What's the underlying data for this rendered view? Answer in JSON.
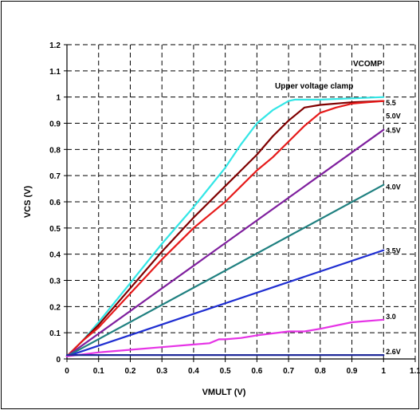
{
  "chart_data": {
    "type": "line",
    "title": "",
    "xlabel": "VMULT (V)",
    "ylabel": "VCS (V)",
    "xlim": [
      0,
      1.1
    ],
    "ylim": [
      0,
      1.2
    ],
    "x_ticks": [
      "0",
      "0.1",
      "0.2",
      "0.3",
      "0.4",
      "0.5",
      "0.6",
      "0.7",
      "0.8",
      "0.9",
      "1",
      "1.1"
    ],
    "y_ticks": [
      "0",
      "0.1",
      "0.2",
      "0.3",
      "0.4",
      "0.5",
      "0.6",
      "0.7",
      "0.8",
      "0.9",
      "1",
      "1.1",
      "1.2"
    ],
    "grid": true,
    "annotations": [
      "VCOMP",
      "Upper voltage clamp"
    ],
    "series": [
      {
        "name": "5.5",
        "color": "#33E6E6",
        "label_at": [
          1.0,
          0.98
        ],
        "x": [
          0,
          0.05,
          0.1,
          0.2,
          0.3,
          0.4,
          0.5,
          0.55,
          0.6,
          0.65,
          0.7,
          0.72,
          0.8,
          0.9,
          1.0
        ],
        "y": [
          0.01,
          0.07,
          0.14,
          0.29,
          0.44,
          0.58,
          0.73,
          0.82,
          0.9,
          0.95,
          0.985,
          0.99,
          0.99,
          0.995,
          1.0
        ]
      },
      {
        "name": "5.0V",
        "color": "#800000",
        "label_at": [
          1.0,
          0.93
        ],
        "x": [
          0,
          0.05,
          0.1,
          0.2,
          0.3,
          0.4,
          0.5,
          0.55,
          0.6,
          0.65,
          0.7,
          0.75,
          0.8,
          0.9,
          1.0
        ],
        "y": [
          0.01,
          0.07,
          0.13,
          0.27,
          0.41,
          0.54,
          0.66,
          0.72,
          0.78,
          0.85,
          0.91,
          0.96,
          0.97,
          0.98,
          0.985
        ]
      },
      {
        "name": "",
        "color": "#E61A1A",
        "x": [
          0,
          0.05,
          0.1,
          0.2,
          0.3,
          0.4,
          0.5,
          0.55,
          0.6,
          0.65,
          0.7,
          0.75,
          0.8,
          0.85,
          0.9,
          0.95,
          1.0
        ],
        "y": [
          0.01,
          0.07,
          0.12,
          0.25,
          0.38,
          0.5,
          0.6,
          0.66,
          0.72,
          0.77,
          0.83,
          0.89,
          0.94,
          0.96,
          0.975,
          0.98,
          0.985
        ]
      },
      {
        "name": "4.5V",
        "color": "#7F1F9E",
        "label_at": [
          1.0,
          0.875
        ],
        "x": [
          0,
          1.0
        ],
        "y": [
          0.01,
          0.875
        ]
      },
      {
        "name": "4.0V",
        "color": "#1F8080",
        "label_at": [
          1.0,
          0.66
        ],
        "x": [
          0,
          1.0
        ],
        "y": [
          0.01,
          0.665
        ]
      },
      {
        "name": "3.5V",
        "color": "#1F2ED1",
        "label_at": [
          1.0,
          0.415
        ],
        "x": [
          0,
          1.0
        ],
        "y": [
          0.01,
          0.415
        ]
      },
      {
        "name": "3.0",
        "color": "#E633E6",
        "label_at": [
          1.0,
          0.165
        ],
        "x": [
          0,
          0.1,
          0.2,
          0.3,
          0.4,
          0.45,
          0.48,
          0.5,
          0.55,
          0.6,
          0.7,
          0.75,
          0.8,
          0.9,
          1.0
        ],
        "y": [
          0.01,
          0.025,
          0.035,
          0.045,
          0.055,
          0.06,
          0.075,
          0.075,
          0.08,
          0.09,
          0.105,
          0.105,
          0.115,
          0.14,
          0.15
        ]
      },
      {
        "name": "2.6V",
        "color": "#1F2A99",
        "label_at": [
          1.0,
          0.03
        ],
        "x": [
          0,
          1.0
        ],
        "y": [
          0.015,
          0.015
        ]
      }
    ]
  }
}
